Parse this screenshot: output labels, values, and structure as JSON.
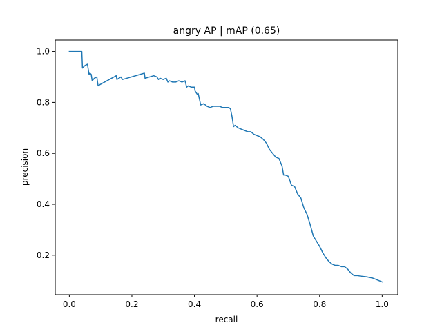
{
  "chart_data": {
    "type": "line",
    "title": "angry AP | mAP (0.65)",
    "xlabel": "recall",
    "ylabel": "precision",
    "xlim": [
      -0.045,
      1.05
    ],
    "ylim": [
      0.045,
      1.045
    ],
    "xticks": [
      0.0,
      0.2,
      0.4,
      0.6,
      0.8,
      1.0
    ],
    "yticks": [
      0.2,
      0.4,
      0.6,
      0.8,
      1.0
    ],
    "xtick_labels": [
      "0.0",
      "0.2",
      "0.4",
      "0.6",
      "0.8",
      "1.0"
    ],
    "ytick_labels": [
      "0.2",
      "0.4",
      "0.6",
      "0.8",
      "1.0"
    ],
    "grid": false,
    "legend": "none",
    "series": [
      {
        "color": "#1f77b4",
        "x": [
          0.0,
          0.04,
          0.042,
          0.05,
          0.058,
          0.063,
          0.066,
          0.07,
          0.073,
          0.08,
          0.088,
          0.092,
          0.098,
          0.15,
          0.152,
          0.165,
          0.17,
          0.24,
          0.242,
          0.27,
          0.28,
          0.285,
          0.29,
          0.3,
          0.31,
          0.315,
          0.32,
          0.33,
          0.34,
          0.35,
          0.36,
          0.37,
          0.375,
          0.38,
          0.39,
          0.4,
          0.402,
          0.41,
          0.412,
          0.42,
          0.43,
          0.44,
          0.45,
          0.46,
          0.48,
          0.49,
          0.5,
          0.51,
          0.515,
          0.52,
          0.525,
          0.53,
          0.54,
          0.55,
          0.56,
          0.57,
          0.58,
          0.59,
          0.6,
          0.61,
          0.62,
          0.63,
          0.64,
          0.65,
          0.66,
          0.67,
          0.68,
          0.685,
          0.69,
          0.7,
          0.71,
          0.72,
          0.73,
          0.74,
          0.75,
          0.76,
          0.77,
          0.78,
          0.79,
          0.8,
          0.81,
          0.82,
          0.83,
          0.84,
          0.85,
          0.86,
          0.87,
          0.88,
          0.89,
          0.9,
          0.91,
          0.92,
          0.93,
          0.95,
          0.97,
          0.98,
          0.99,
          1.0
        ],
        "y": [
          1.0,
          1.0,
          0.935,
          0.945,
          0.95,
          0.91,
          0.915,
          0.91,
          0.885,
          0.895,
          0.9,
          0.865,
          0.87,
          0.905,
          0.89,
          0.9,
          0.89,
          0.915,
          0.895,
          0.905,
          0.9,
          0.89,
          0.895,
          0.89,
          0.895,
          0.88,
          0.885,
          0.88,
          0.88,
          0.885,
          0.88,
          0.885,
          0.86,
          0.865,
          0.86,
          0.86,
          0.845,
          0.83,
          0.835,
          0.79,
          0.795,
          0.785,
          0.78,
          0.785,
          0.785,
          0.78,
          0.78,
          0.78,
          0.775,
          0.745,
          0.705,
          0.71,
          0.7,
          0.695,
          0.69,
          0.685,
          0.685,
          0.675,
          0.67,
          0.665,
          0.655,
          0.64,
          0.615,
          0.6,
          0.585,
          0.58,
          0.55,
          0.515,
          0.515,
          0.51,
          0.475,
          0.47,
          0.44,
          0.425,
          0.385,
          0.36,
          0.32,
          0.275,
          0.255,
          0.235,
          0.21,
          0.19,
          0.175,
          0.165,
          0.16,
          0.16,
          0.155,
          0.155,
          0.145,
          0.13,
          0.12,
          0.12,
          0.118,
          0.115,
          0.11,
          0.105,
          0.1,
          0.095
        ]
      }
    ]
  }
}
